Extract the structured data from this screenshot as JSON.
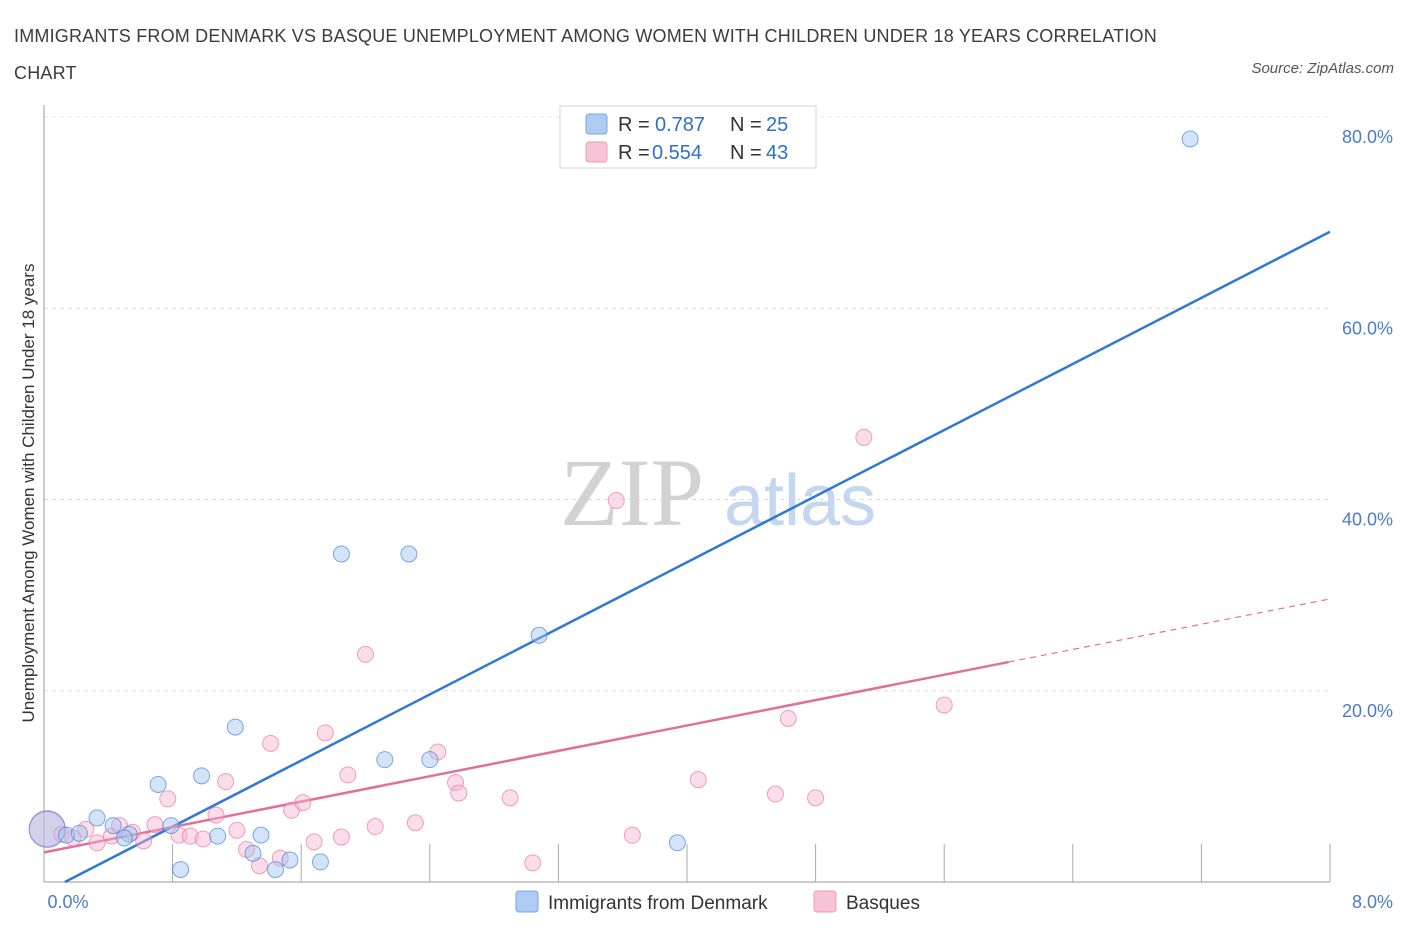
{
  "title": "IMMIGRANTS FROM DENMARK VS BASQUE UNEMPLOYMENT AMONG WOMEN WITH CHILDREN UNDER 18 YEARS CORRELATION CHART",
  "source": "Source: ZipAtlas.com",
  "watermark": {
    "zip": "ZIP",
    "atlas": "atlas"
  },
  "colors": {
    "blue": "#4a86d8",
    "blue_fill": "rgba(160,195,240,0.45)",
    "blue_line": "#2f78d4",
    "pink": "#e87aa0",
    "pink_fill": "rgba(245,180,205,0.45)",
    "pink_line": "#e0709a",
    "tick_text": "#4a7cc9"
  },
  "legend_top": [
    {
      "r_label": "R =",
      "r_value": "0.787",
      "n_label": "N =",
      "n_value": "25",
      "color": "blue"
    },
    {
      "r_label": "R =",
      "r_value": "0.554",
      "n_label": "N =",
      "n_value": "43",
      "color": "pink"
    }
  ],
  "legend_bottom": [
    {
      "label": "Immigrants from Denmark",
      "color": "blue"
    },
    {
      "label": "Basques",
      "color": "pink"
    }
  ],
  "chart_data": {
    "type": "scatter",
    "title": "IMMIGRANTS FROM DENMARK VS BASQUE UNEMPLOYMENT AMONG WOMEN WITH CHILDREN UNDER 18 YEARS CORRELATION CHART",
    "xlabel": "",
    "ylabel": "Unemployment Among Women with Children Under 18 years",
    "xlim": [
      0,
      8
    ],
    "ylim": [
      0,
      80
    ],
    "x_tick_labels": [
      "0.0%",
      "8.0%"
    ],
    "y_ticks": [
      20,
      40,
      60,
      80
    ],
    "y_tick_labels": [
      "20.0%",
      "40.0%",
      "60.0%",
      "80.0%"
    ],
    "series": [
      {
        "name": "Immigrants from Denmark",
        "color": "blue",
        "points": [
          [
            0.02,
            5.5
          ],
          [
            0.14,
            4.9
          ],
          [
            0.22,
            5.1
          ],
          [
            0.33,
            6.7
          ],
          [
            0.43,
            5.9
          ],
          [
            0.53,
            5.0
          ],
          [
            0.71,
            10.2
          ],
          [
            0.79,
            5.9
          ],
          [
            0.85,
            1.3
          ],
          [
            0.98,
            11.1
          ],
          [
            1.08,
            4.8
          ],
          [
            1.19,
            16.2
          ],
          [
            1.3,
            3.0
          ],
          [
            1.35,
            4.9
          ],
          [
            1.44,
            1.3
          ],
          [
            1.53,
            2.3
          ],
          [
            1.72,
            2.1
          ],
          [
            1.85,
            34.3
          ],
          [
            2.12,
            12.8
          ],
          [
            2.27,
            34.3
          ],
          [
            2.4,
            12.8
          ],
          [
            3.08,
            25.8
          ],
          [
            3.94,
            4.1
          ],
          [
            7.13,
            77.7
          ],
          [
            0.5,
            4.6
          ]
        ],
        "trend": {
          "x": [
            0.13,
            8.0
          ],
          "y": [
            0.0,
            68.0
          ],
          "dashed_to": null
        }
      },
      {
        "name": "Basques",
        "color": "pink",
        "points": [
          [
            0.02,
            5.6
          ],
          [
            0.11,
            5.0
          ],
          [
            0.18,
            4.6
          ],
          [
            0.26,
            5.5
          ],
          [
            0.33,
            4.1
          ],
          [
            0.42,
            4.8
          ],
          [
            0.47,
            5.9
          ],
          [
            0.55,
            5.2
          ],
          [
            0.62,
            4.3
          ],
          [
            0.69,
            6.0
          ],
          [
            0.77,
            8.7
          ],
          [
            0.84,
            4.9
          ],
          [
            0.91,
            4.8
          ],
          [
            0.99,
            4.5
          ],
          [
            1.07,
            7.0
          ],
          [
            1.13,
            10.5
          ],
          [
            1.2,
            5.4
          ],
          [
            1.26,
            3.4
          ],
          [
            1.34,
            1.7
          ],
          [
            1.41,
            14.5
          ],
          [
            1.47,
            2.5
          ],
          [
            1.54,
            7.5
          ],
          [
            1.61,
            8.3
          ],
          [
            1.68,
            4.2
          ],
          [
            1.75,
            15.6
          ],
          [
            1.85,
            4.7
          ],
          [
            1.89,
            11.2
          ],
          [
            2.0,
            23.8
          ],
          [
            2.06,
            5.8
          ],
          [
            2.31,
            6.2
          ],
          [
            2.45,
            13.6
          ],
          [
            2.56,
            10.4
          ],
          [
            2.58,
            9.3
          ],
          [
            2.9,
            8.8
          ],
          [
            3.04,
            2.0
          ],
          [
            3.56,
            39.9
          ],
          [
            3.66,
            4.9
          ],
          [
            4.07,
            10.7
          ],
          [
            4.55,
            9.2
          ],
          [
            4.63,
            17.1
          ],
          [
            4.8,
            8.8
          ],
          [
            5.1,
            46.5
          ],
          [
            5.6,
            18.5
          ]
        ],
        "trend": {
          "x": [
            0.0,
            6.0
          ],
          "y": [
            3.1,
            23.0
          ],
          "dashed_to": [
            8.0,
            29.6
          ]
        }
      }
    ],
    "legend": "top-center"
  }
}
